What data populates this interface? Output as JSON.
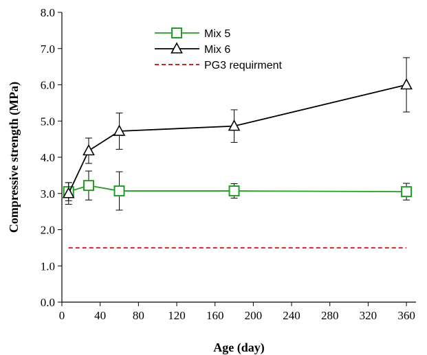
{
  "chart_data": {
    "type": "line",
    "title": "",
    "xlabel": "Age (day)",
    "ylabel": "Compressive strength (MPa)",
    "xlim": [
      0,
      370
    ],
    "ylim": [
      0,
      8
    ],
    "xticks": [
      0,
      40,
      80,
      120,
      160,
      200,
      240,
      280,
      320,
      360
    ],
    "xtick_labels": [
      "0",
      "40",
      "80",
      "120",
      "160",
      "200",
      "240",
      "280",
      "320",
      "360"
    ],
    "yticks": [
      0,
      1,
      2,
      3,
      4,
      5,
      6,
      7,
      8
    ],
    "ytick_labels": [
      "0.0",
      "1.0",
      "2.0",
      "3.0",
      "4.0",
      "5.0",
      "6.0",
      "7.0",
      "8.0"
    ],
    "grid": false,
    "legend_position": "top-center",
    "series": [
      {
        "name": "Mix 5",
        "color": "#1f9e1f",
        "marker": "square",
        "x": [
          7,
          28,
          60,
          180,
          360
        ],
        "y": [
          3.05,
          3.22,
          3.07,
          3.07,
          3.05
        ],
        "error": [
          0.25,
          0.4,
          0.53,
          0.2,
          0.23
        ]
      },
      {
        "name": "Mix 6",
        "color": "#000000",
        "marker": "triangle",
        "x": [
          7,
          28,
          60,
          180,
          360
        ],
        "y": [
          3.0,
          4.18,
          4.72,
          4.86,
          6.0
        ],
        "error": [
          0.3,
          0.35,
          0.5,
          0.45,
          0.75
        ]
      }
    ],
    "reference_lines": [
      {
        "name": "PG3 requirment",
        "color": "#e02020",
        "style": "dashed",
        "y": 1.5,
        "x_range": [
          7,
          360
        ]
      }
    ]
  }
}
